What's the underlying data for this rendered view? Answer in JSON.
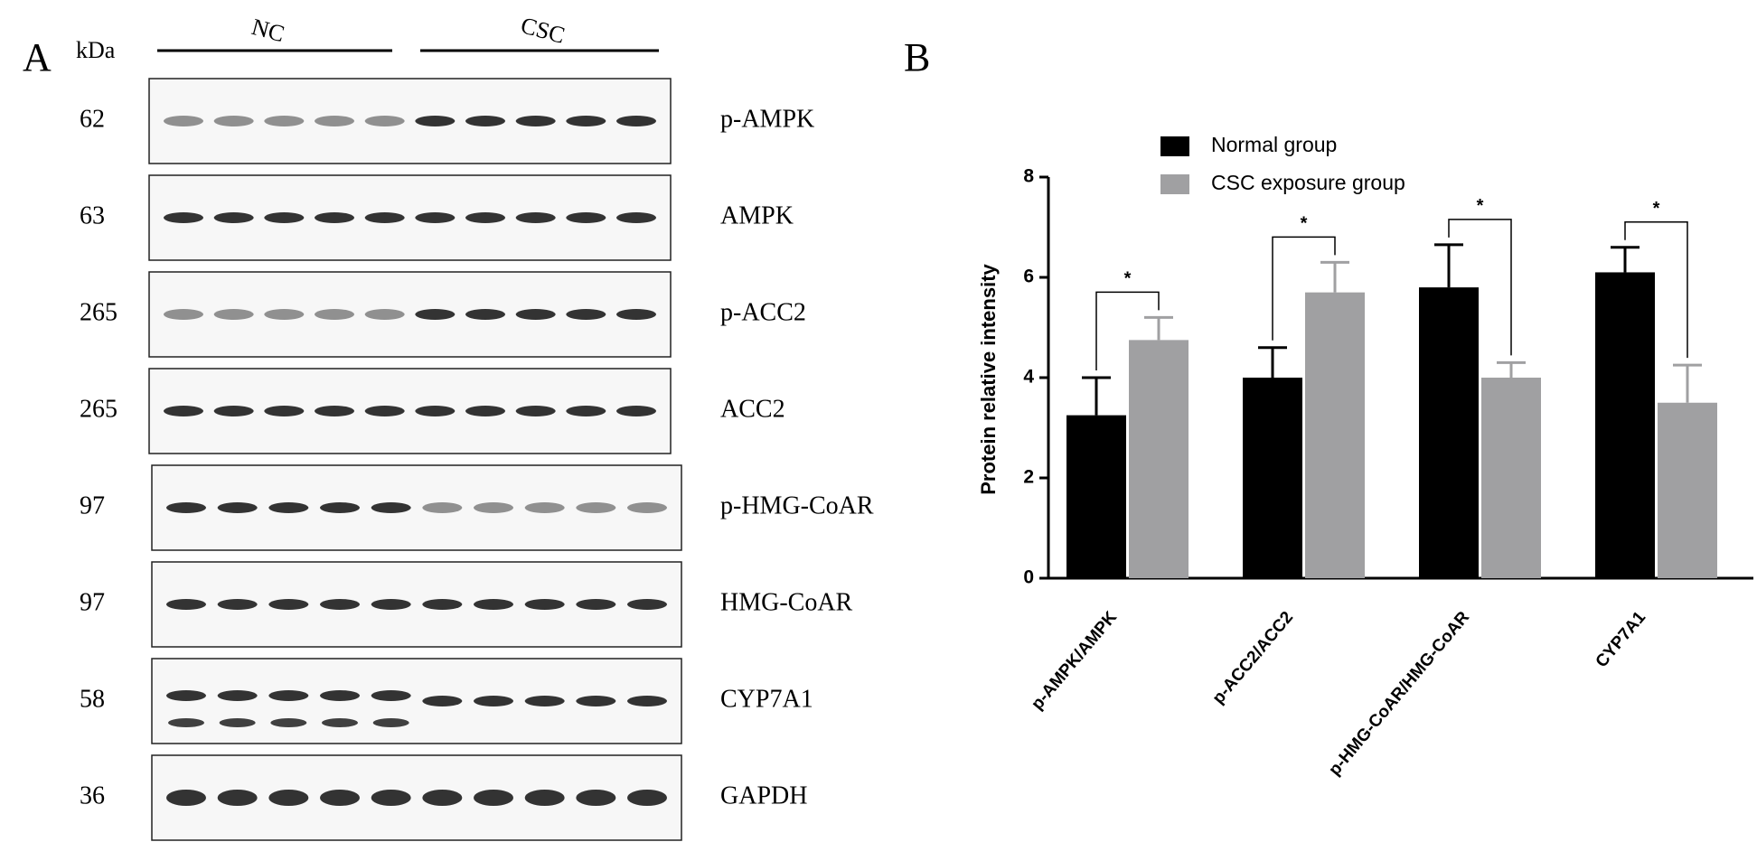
{
  "panel_labels": [
    "A",
    "B"
  ],
  "blot": {
    "unit_label": "kDa",
    "groups": [
      "NC",
      "CSC"
    ],
    "rows": [
      {
        "kda": "62",
        "name": "p-AMPK"
      },
      {
        "kda": "63",
        "name": "AMPK"
      },
      {
        "kda": "265",
        "name": "p-ACC2"
      },
      {
        "kda": "265",
        "name": "ACC2"
      },
      {
        "kda": "97",
        "name": "p-HMG-CoAR"
      },
      {
        "kda": "97",
        "name": "HMG-CoAR"
      },
      {
        "kda": "58",
        "name": "CYP7A1"
      },
      {
        "kda": "36",
        "name": "GAPDH"
      }
    ]
  },
  "chart_data": {
    "type": "bar",
    "y_label": "Protein relative intensity",
    "categories": [
      "p-AMPK/AMPK",
      "p-ACC2/ACC2",
      "p-HMG-CoAR/HMG-CoAR",
      "CYP7A1"
    ],
    "series": [
      {
        "name": "Normal group",
        "color": "#000000",
        "values": [
          3.25,
          4.0,
          5.8,
          6.1
        ],
        "errors": [
          0.75,
          0.6,
          0.85,
          0.5
        ]
      },
      {
        "name": "CSC exposure group",
        "color": "#a0a0a2",
        "values": [
          4.75,
          5.7,
          4.0,
          3.5
        ],
        "errors": [
          0.45,
          0.6,
          0.3,
          0.75
        ]
      }
    ],
    "significance": [
      "*",
      "*",
      "*",
      "*"
    ],
    "ylim": [
      0,
      8
    ],
    "yticks": [
      0,
      2,
      4,
      6,
      8
    ],
    "grid": false
  }
}
